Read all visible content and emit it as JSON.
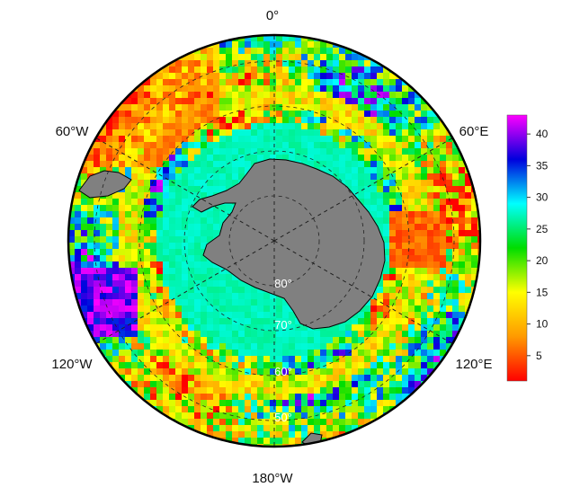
{
  "map": {
    "projection": "south-polar-stereographic",
    "longitude_labels": {
      "top": "0°",
      "upper_left": "60°W",
      "upper_right": "60°E",
      "lower_left": "120°W",
      "lower_right": "120°E",
      "bottom": "180°W"
    },
    "latitude_labels": [
      "80°",
      "70°",
      "60°",
      "50°"
    ],
    "land_color": "#808080",
    "coast_color": "#000000"
  },
  "colorbar": {
    "ticks": [
      "5",
      "10",
      "15",
      "20",
      "25",
      "30",
      "35",
      "40"
    ],
    "range": [
      1,
      43
    ],
    "colors": [
      "#ff0000",
      "#ff9900",
      "#ffff00",
      "#00dd00",
      "#00ffff",
      "#0000dd",
      "#ff00ff"
    ]
  }
}
